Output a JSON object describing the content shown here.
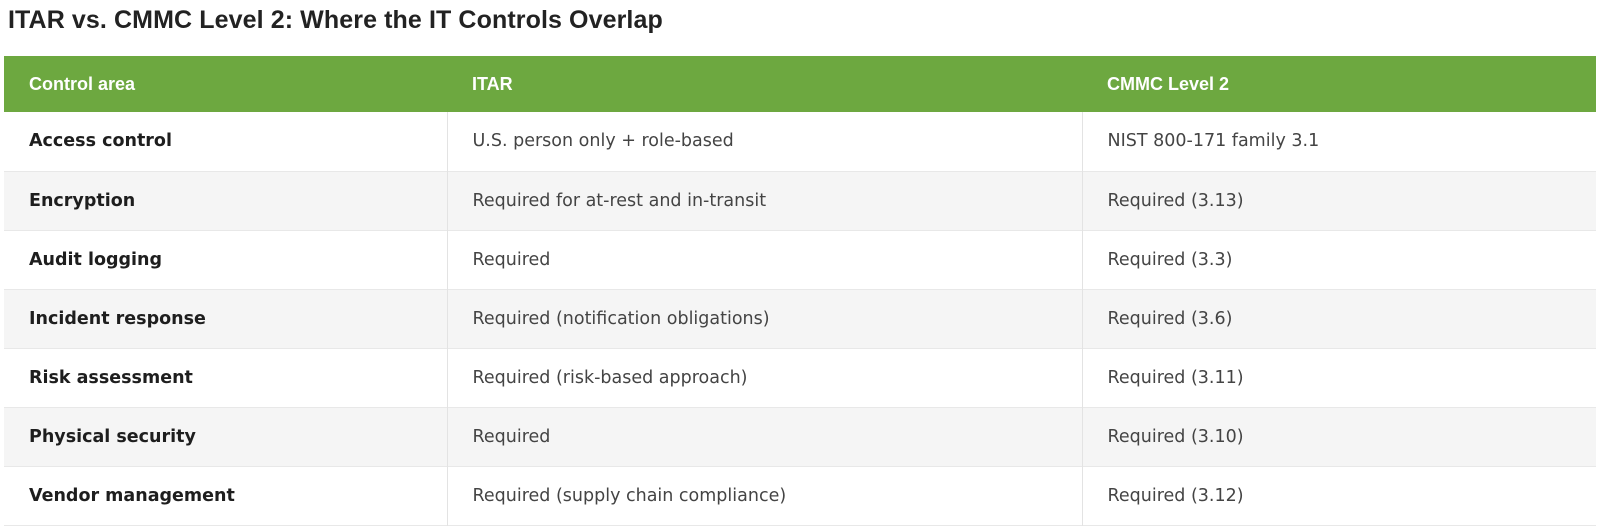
{
  "page": {
    "title": "ITAR vs. CMMC Level 2: Where the IT Controls Overlap"
  },
  "colors": {
    "header_bg": "#6da840",
    "header_text": "#ffffff",
    "row_alt_bg": "#f5f5f5"
  },
  "table": {
    "headers": [
      "Control area",
      "ITAR",
      "CMMC Level 2"
    ],
    "rows": [
      [
        "Access control",
        "U.S. person only + role-based",
        "NIST 800-171 family 3.1"
      ],
      [
        "Encryption",
        "Required for at-rest and in-transit",
        "Required (3.13)"
      ],
      [
        "Audit logging",
        "Required",
        "Required (3.3)"
      ],
      [
        "Incident response",
        "Required (notification obligations)",
        "Required (3.6)"
      ],
      [
        "Risk assessment",
        "Required (risk-based approach)",
        "Required (3.11)"
      ],
      [
        "Physical security",
        "Required",
        "Required (3.10)"
      ],
      [
        "Vendor management",
        "Required (supply chain compliance)",
        "Required (3.12)"
      ]
    ]
  }
}
